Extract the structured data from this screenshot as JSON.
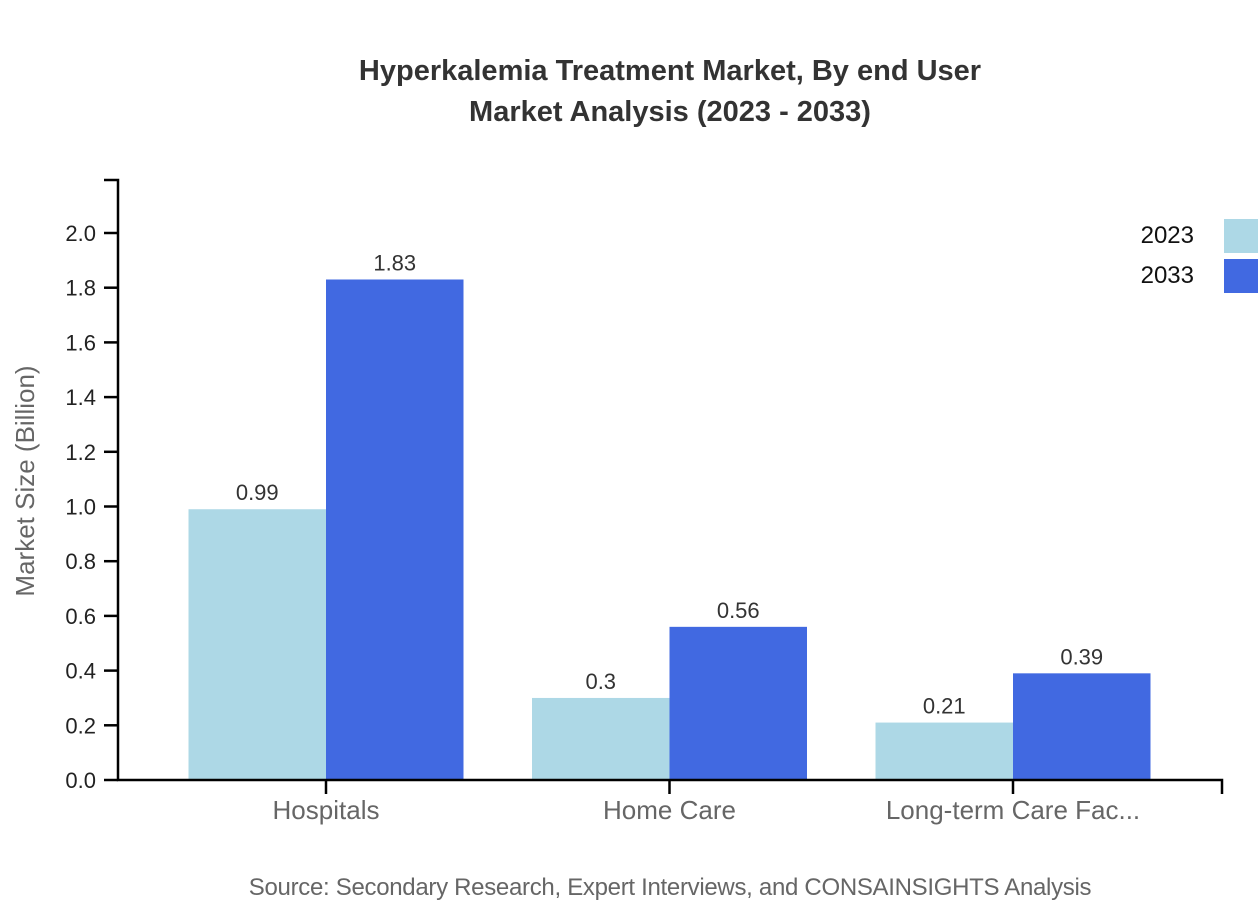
{
  "title": {
    "line1": "Hyperkalemia Treatment Market, By end User",
    "line2": "Market Analysis (2023 - 2033)"
  },
  "source": "Source: Secondary Research, Expert Interviews, and CONSAINSIGHTS Analysis",
  "colors": {
    "axis": "#000000",
    "tick_label": "#222222",
    "value_label": "#333333",
    "muted": "#666666",
    "title_text": "#333333",
    "series_2023": "#ADD8E6",
    "series_2033": "#4169E1"
  },
  "chart_data": {
    "type": "bar",
    "title": "Hyperkalemia Treatment Market, By end User Market Analysis (2023 - 2033)",
    "categories": [
      "Hospitals",
      "Home Care",
      "Long-term Care Fac..."
    ],
    "series": [
      {
        "name": "2023",
        "color": "#ADD8E6",
        "values": [
          0.99,
          0.3,
          0.21
        ]
      },
      {
        "name": "2033",
        "color": "#4169E1",
        "values": [
          1.83,
          0.56,
          0.39
        ]
      }
    ],
    "xlabel": "",
    "ylabel": "Market Size (Billion)",
    "ylim": [
      0,
      2.2
    ],
    "ytick_step": 0.2,
    "ytick_max": 2.0,
    "grid": false,
    "legend_position": "top-right",
    "value_labels_shown": true
  }
}
